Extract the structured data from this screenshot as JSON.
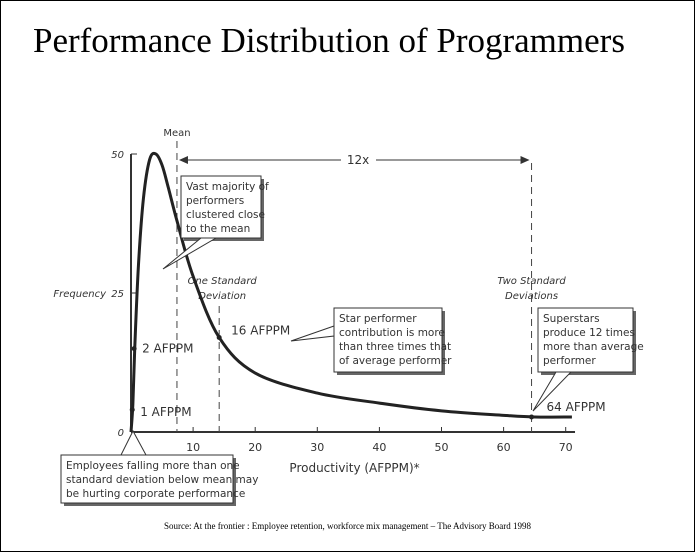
{
  "title": "Performance Distribution of Programmers",
  "source": "Source: At the frontier : Employee retention, workforce mix management – The Advisory Board 1998",
  "chart_data": {
    "type": "line",
    "xlabel": "Productivity (AFPPM)*",
    "ylabel": "Frequency",
    "xlim": [
      0,
      72
    ],
    "ylim": [
      0,
      50
    ],
    "x_ticks": [
      "0",
      "10",
      "20",
      "30",
      "40",
      "50",
      "60",
      "70"
    ],
    "y_ticks": [
      "0",
      "25",
      "50"
    ],
    "x": [
      0,
      0.3,
      0.6,
      1.2,
      2,
      3,
      4,
      5,
      6,
      7.4,
      10,
      14.2,
      20,
      30,
      40,
      50,
      60,
      65,
      71
    ],
    "y": [
      0,
      5,
      15,
      30,
      42,
      49,
      50,
      48,
      44,
      38,
      28,
      17,
      10.6,
      7,
      5.2,
      3.8,
      3,
      2.7,
      2.7
    ],
    "reference_lines": [
      {
        "label": "Mean",
        "x": 7.4
      },
      {
        "label": "One Standard Deviation",
        "x": 14.2
      },
      {
        "label": "Two Standard Deviations",
        "x": 64.5
      }
    ],
    "range_arrow_label": "12x",
    "point_labels": [
      {
        "label": "1 AFPPM",
        "x": 0.2,
        "y": 4
      },
      {
        "label": "2 AFPPM",
        "x": 0.5,
        "y": 15
      },
      {
        "label": "16 AFPPM",
        "x": 14.2,
        "y": 17
      },
      {
        "label": "64 AFPPM",
        "x": 64.5,
        "y": 2.7
      }
    ],
    "callouts": [
      "Vast majority of|performers|clustered close|to the mean",
      "Star performer|contribution is more|than three times that|of average performer",
      "Superstars|produce 12 times|more than average|performer",
      "Employees falling more than one|standard deviation below mean may|be hurting corporate performance"
    ],
    "grid": false,
    "legend": "none"
  }
}
